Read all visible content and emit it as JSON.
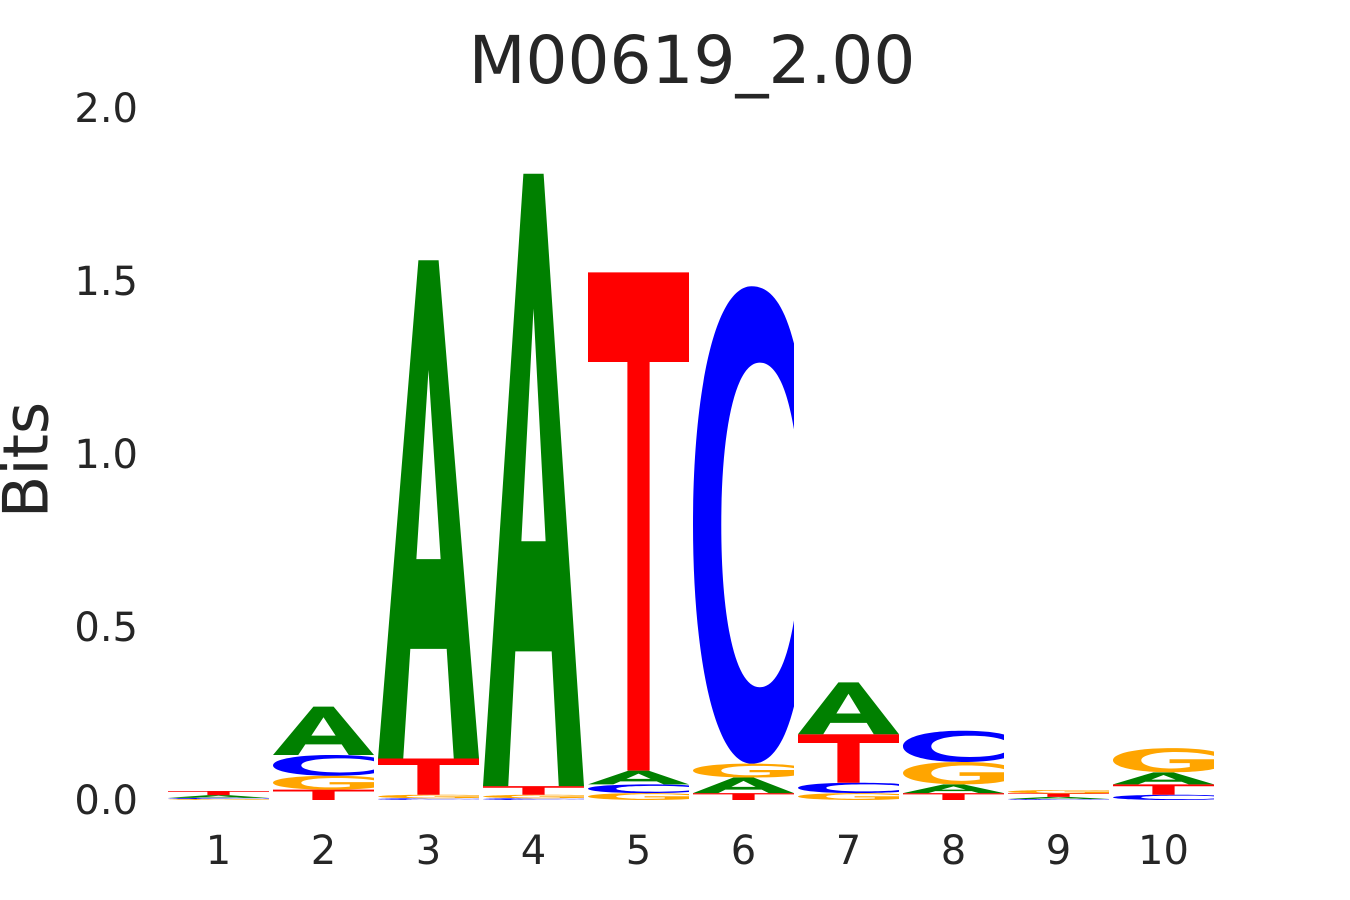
{
  "chart_data": {
    "type": "sequence-logo",
    "title": "M00619_2.00",
    "ylabel": "Bits",
    "xlabel": "",
    "ylim": [
      0,
      2.0
    ],
    "yticks": [
      "0.0",
      "0.5",
      "1.0",
      "1.5",
      "2.0"
    ],
    "positions": [
      "1",
      "2",
      "3",
      "4",
      "5",
      "6",
      "7",
      "8",
      "9",
      "10"
    ],
    "colors": {
      "A": "#008000",
      "C": "#0000ff",
      "G": "#ffa500",
      "T": "#ff0000"
    },
    "stacks": [
      [
        {
          "base": "G",
          "bits": 0.003
        },
        {
          "base": "C",
          "bits": 0.003
        },
        {
          "base": "A",
          "bits": 0.008
        },
        {
          "base": "T",
          "bits": 0.012
        }
      ],
      [
        {
          "base": "T",
          "bits": 0.03
        },
        {
          "base": "G",
          "bits": 0.04
        },
        {
          "base": "C",
          "bits": 0.06
        },
        {
          "base": "A",
          "bits": 0.14
        }
      ],
      [
        {
          "base": "C",
          "bits": 0.005
        },
        {
          "base": "G",
          "bits": 0.01
        },
        {
          "base": "T",
          "bits": 0.105
        },
        {
          "base": "A",
          "bits": 1.44
        }
      ],
      [
        {
          "base": "C",
          "bits": 0.005
        },
        {
          "base": "G",
          "bits": 0.01
        },
        {
          "base": "T",
          "bits": 0.025
        },
        {
          "base": "A",
          "bits": 1.77
        }
      ],
      [
        {
          "base": "G",
          "bits": 0.02
        },
        {
          "base": "C",
          "bits": 0.025
        },
        {
          "base": "A",
          "bits": 0.04
        },
        {
          "base": "T",
          "bits": 1.44
        }
      ],
      [
        {
          "base": "T",
          "bits": 0.02
        },
        {
          "base": "A",
          "bits": 0.045
        },
        {
          "base": "G",
          "bits": 0.04
        },
        {
          "base": "C",
          "bits": 1.38
        }
      ],
      [
        {
          "base": "G",
          "bits": 0.02
        },
        {
          "base": "C",
          "bits": 0.03
        },
        {
          "base": "T",
          "bits": 0.14
        },
        {
          "base": "A",
          "bits": 0.15
        }
      ],
      [
        {
          "base": "T",
          "bits": 0.02
        },
        {
          "base": "A",
          "bits": 0.025
        },
        {
          "base": "G",
          "bits": 0.065
        },
        {
          "base": "C",
          "bits": 0.09
        }
      ],
      [
        {
          "base": "C",
          "bits": 0.003
        },
        {
          "base": "A",
          "bits": 0.006
        },
        {
          "base": "T",
          "bits": 0.01
        },
        {
          "base": "G",
          "bits": 0.01
        }
      ],
      [
        {
          "base": "C",
          "bits": 0.015
        },
        {
          "base": "T",
          "bits": 0.03
        },
        {
          "base": "A",
          "bits": 0.035
        },
        {
          "base": "G",
          "bits": 0.07
        }
      ]
    ]
  }
}
